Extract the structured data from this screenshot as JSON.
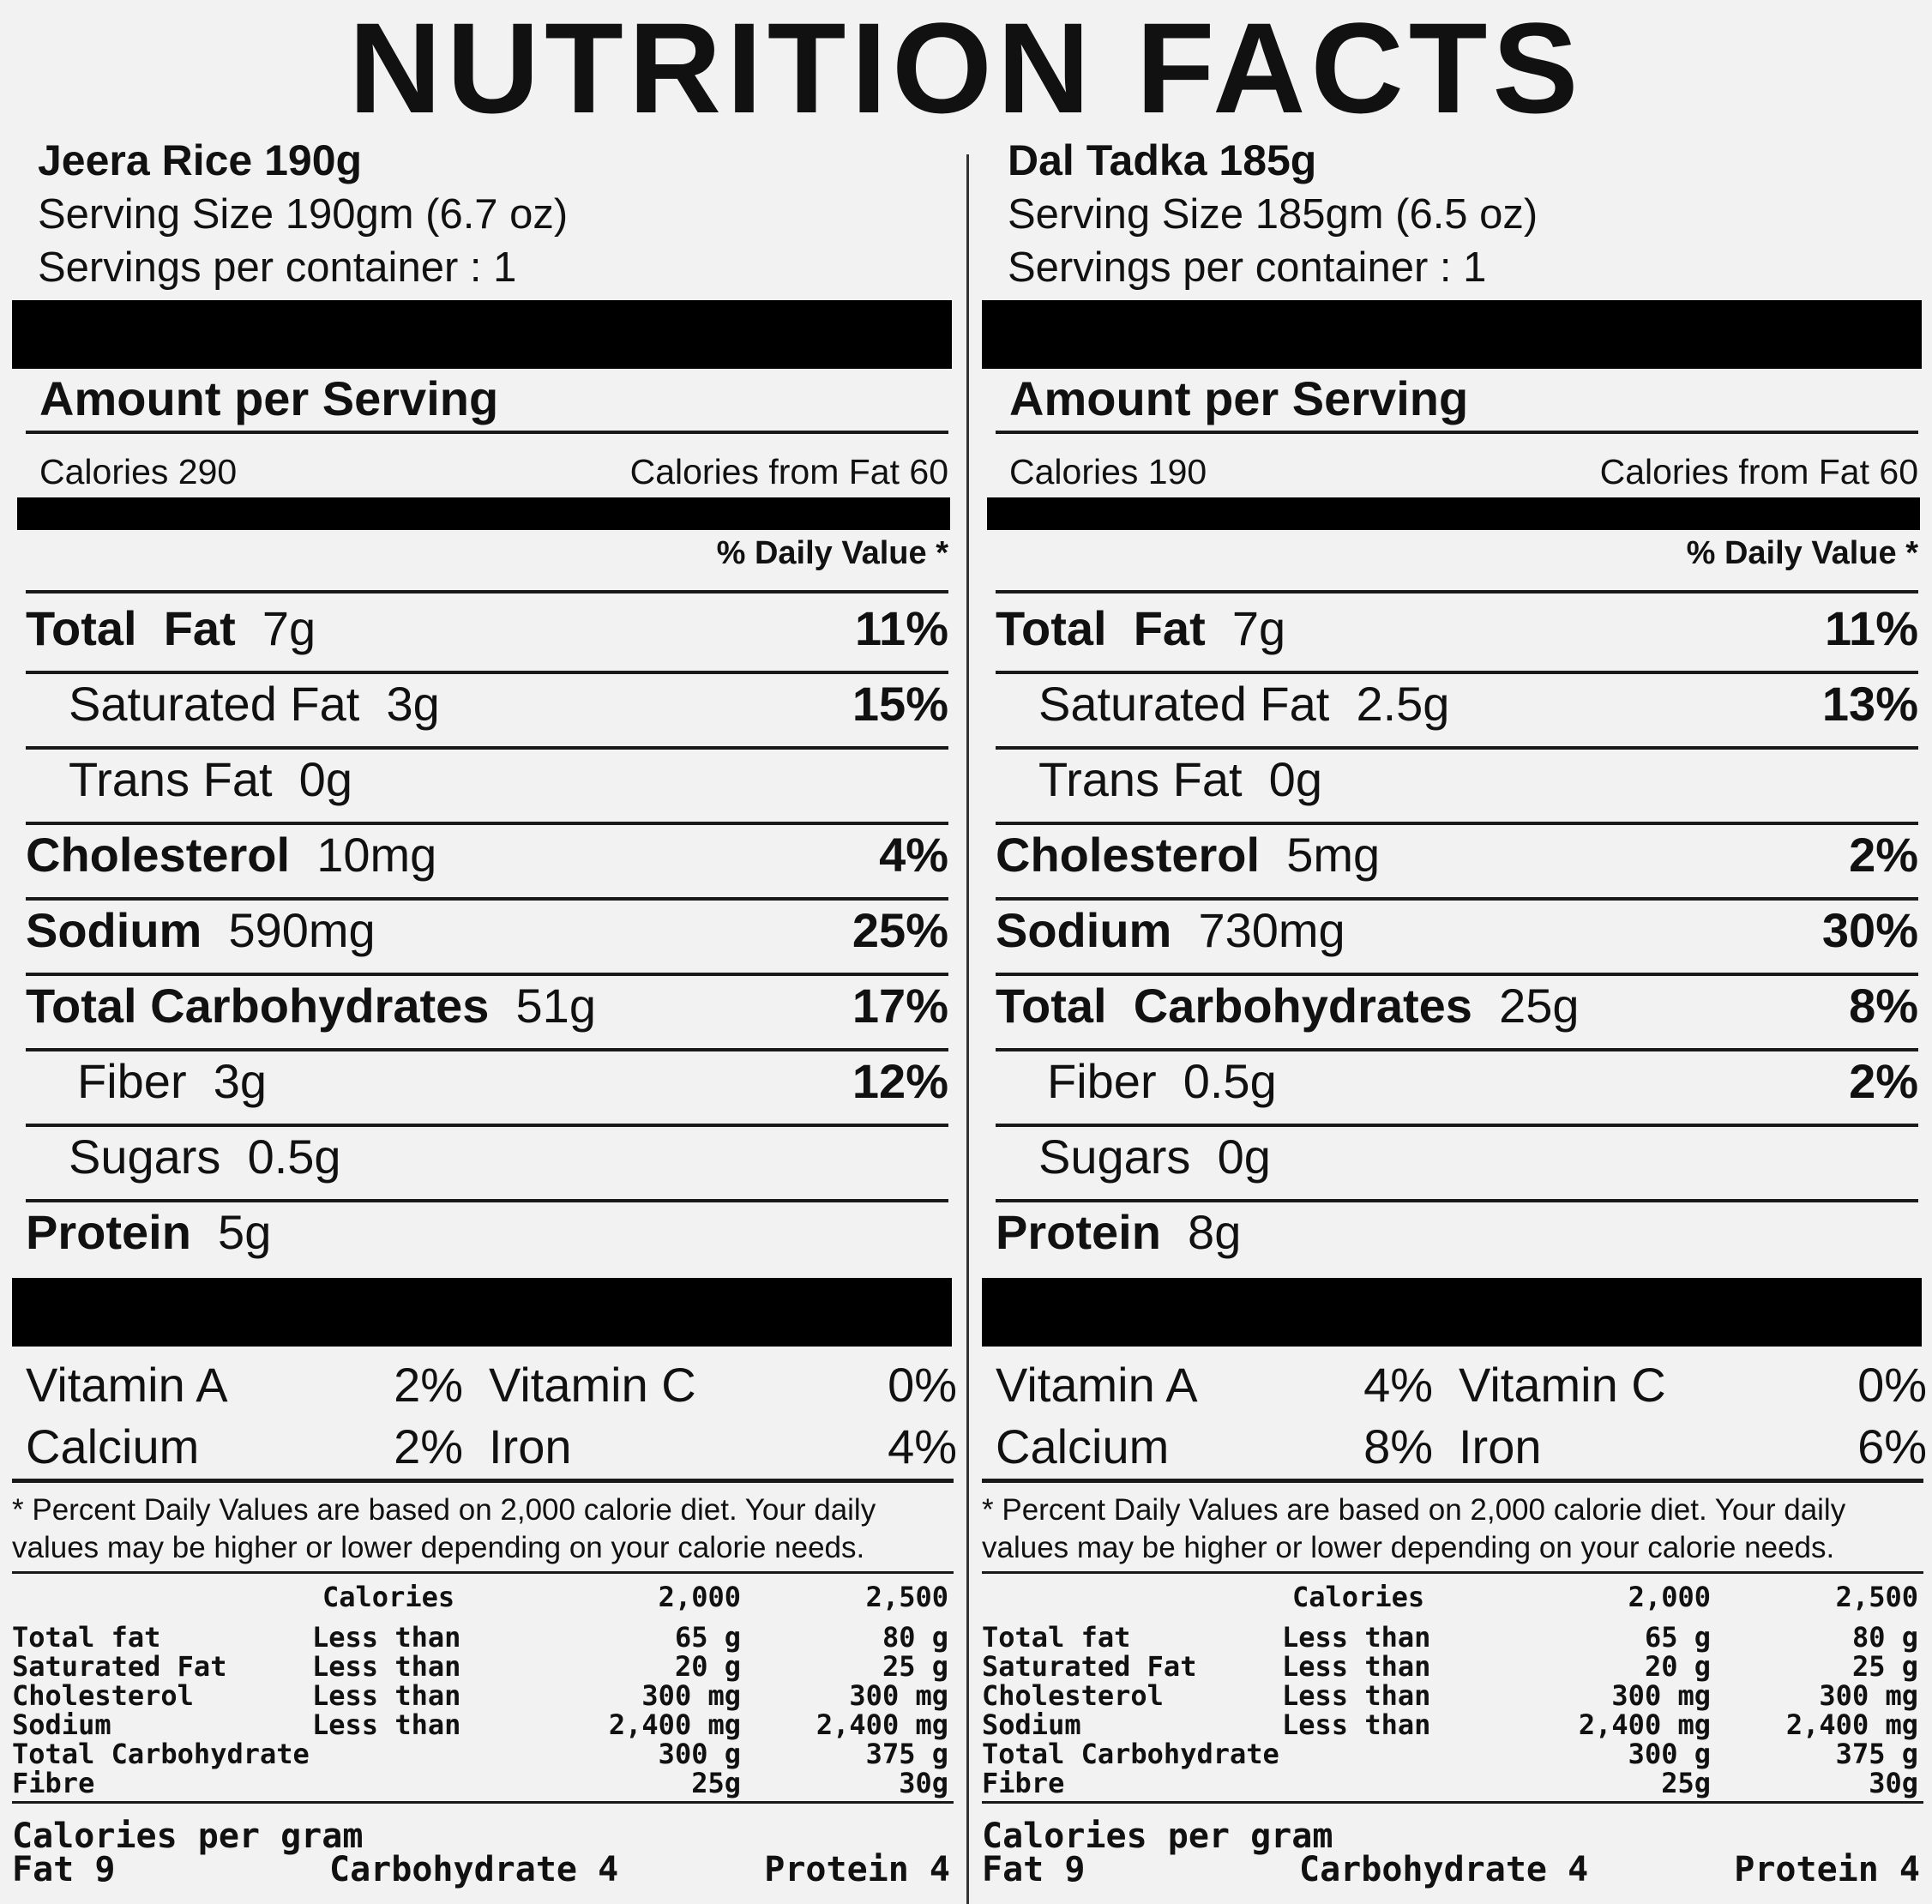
{
  "title": "NUTRITION FACTS",
  "panels": [
    {
      "product": "Jeera Rice 190g",
      "serving_size": "Serving Size 190gm (6.7 oz)",
      "servings": "Servings per container : 1",
      "amount_per_serving": "Amount per Serving",
      "calories": "Calories 290",
      "calories_fat": "Calories from Fat 60",
      "daily_value_header": "% Daily Value *",
      "nutrients": [
        {
          "name": "Total  Fat",
          "amount": "7g",
          "pct": "11%"
        },
        {
          "name": "Saturated Fat",
          "amount": "3g",
          "pct": "15%"
        },
        {
          "name": "Trans Fat",
          "amount": "0g",
          "pct": ""
        },
        {
          "name": "Cholesterol",
          "amount": "10mg",
          "pct": "4%"
        },
        {
          "name": "Sodium",
          "amount": "590mg",
          "pct": "25%"
        },
        {
          "name": "Total Carbohydrates",
          "amount": "51g",
          "pct": "17%"
        },
        {
          "name": "Fiber",
          "amount": "3g",
          "pct": "12%"
        },
        {
          "name": "Sugars",
          "amount": "0.5g",
          "pct": ""
        },
        {
          "name": "Protein",
          "amount": "5g",
          "pct": ""
        }
      ],
      "vitamins": {
        "vitamin_a": "Vitamin A",
        "vitamin_a_pct": "2%",
        "vitamin_c": "Vitamin C",
        "vitamin_c_pct": "0%",
        "calcium": "Calcium",
        "calcium_pct": "2%",
        "iron": "Iron",
        "iron_pct": "4%"
      },
      "footnote_1": "* Percent Daily Values are based on 2,000 calorie diet. Your daily",
      "footnote_2": "values may be higher or lower  depending on your calorie needs.",
      "table_header": {
        "calories": "Calories",
        "c1": "2,000",
        "c2": "2,500"
      },
      "table_rows": [
        {
          "name": "Total fat",
          "qual": "Less than",
          "v1": "65 g",
          "v2": "80 g"
        },
        {
          "name": "Saturated Fat",
          "qual": "Less than",
          "v1": "20 g",
          "v2": "25 g"
        },
        {
          "name": "Cholesterol",
          "qual": "Less than",
          "v1": "300 mg",
          "v2": "300 mg"
        },
        {
          "name": "Sodium",
          "qual": "Less than",
          "v1": "2,400 mg",
          "v2": "2,400 mg"
        },
        {
          "name": "Total Carbohydrate",
          "qual": "",
          "v1": "300 g",
          "v2": "375 g"
        },
        {
          "name": "Fibre",
          "qual": "",
          "v1": "25g",
          "v2": "30g"
        }
      ],
      "cal_per_gram": "Calories per gram",
      "fat": "Fat 9",
      "carb": "Carbohydrate 4",
      "protein": "Protein 4"
    },
    {
      "product": "Dal Tadka 185g",
      "serving_size": "Serving Size 185gm (6.5 oz)",
      "servings": "Servings per container : 1",
      "amount_per_serving": "Amount per Serving",
      "calories": "Calories 190",
      "calories_fat": "Calories from Fat 60",
      "daily_value_header": "% Daily Value *",
      "nutrients": [
        {
          "name": "Total  Fat",
          "amount": "7g",
          "pct": "11%"
        },
        {
          "name": "Saturated Fat",
          "amount": "2.5g",
          "pct": "13%"
        },
        {
          "name": "Trans Fat",
          "amount": "0g",
          "pct": ""
        },
        {
          "name": "Cholesterol",
          "amount": "5mg",
          "pct": "2%"
        },
        {
          "name": "Sodium",
          "amount": "730mg",
          "pct": "30%"
        },
        {
          "name": "Total  Carbohydrates",
          "amount": "25g",
          "pct": "8%"
        },
        {
          "name": "Fiber",
          "amount": "0.5g",
          "pct": "2%"
        },
        {
          "name": "Sugars",
          "amount": "0g",
          "pct": ""
        },
        {
          "name": "Protein",
          "amount": "8g",
          "pct": ""
        }
      ],
      "vitamins": {
        "vitamin_a": "Vitamin A",
        "vitamin_a_pct": "4%",
        "vitamin_c": "Vitamin C",
        "vitamin_c_pct": "0%",
        "calcium": "Calcium",
        "calcium_pct": "8%",
        "iron": "Iron",
        "iron_pct": "6%"
      },
      "footnote_1": "* Percent Daily Values are based on 2,000 calorie diet. Your daily",
      "footnote_2": "values may be higher or lower  depending on your calorie needs.",
      "table_header": {
        "calories": "Calories",
        "c1": "2,000",
        "c2": "2,500"
      },
      "table_rows": [
        {
          "name": "Total fat",
          "qual": "Less than",
          "v1": "65 g",
          "v2": "80 g"
        },
        {
          "name": "Saturated Fat",
          "qual": "Less than",
          "v1": "20 g",
          "v2": "25 g"
        },
        {
          "name": "Cholesterol",
          "qual": "Less than",
          "v1": "300 mg",
          "v2": "300 mg"
        },
        {
          "name": "Sodium",
          "qual": "Less than",
          "v1": "2,400 mg",
          "v2": "2,400 mg"
        },
        {
          "name": "Total Carbohydrate",
          "qual": "",
          "v1": "300 g",
          "v2": "375 g"
        },
        {
          "name": "Fibre",
          "qual": "",
          "v1": "25g",
          "v2": "30g"
        }
      ],
      "cal_per_gram": "Calories per gram",
      "fat": "Fat 9",
      "carb": "Carbohydrate 4",
      "protein": "Protein 4"
    }
  ]
}
